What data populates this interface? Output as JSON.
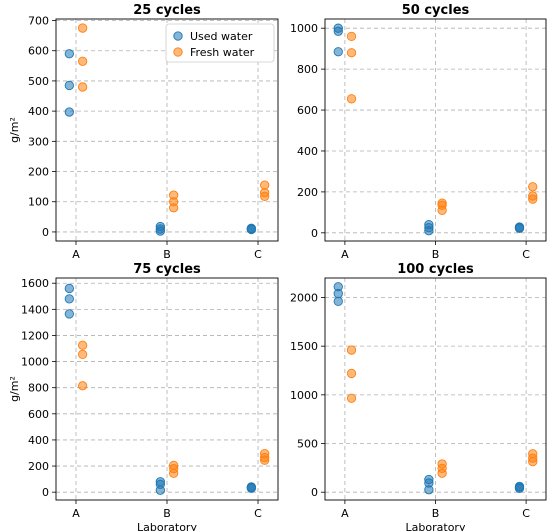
{
  "colors": {
    "used": "#1f77b4",
    "fresh": "#ff7f0e"
  },
  "legend": {
    "placement": "top-right",
    "entries": [
      "Used water",
      "Fresh water"
    ]
  },
  "chart_data": [
    {
      "type": "scatter",
      "title": "25 cycles",
      "xlabel": "",
      "ylabel": "g/m²",
      "categories": [
        "A",
        "B",
        "C"
      ],
      "ylim": [
        -30,
        705
      ],
      "yticks": [
        "0",
        "100",
        "200",
        "300",
        "400",
        "500",
        "600",
        "700"
      ],
      "grid": true,
      "series": [
        {
          "name": "Used water",
          "points": [
            [
              "A",
              590
            ],
            [
              "A",
              485
            ],
            [
              "A",
              397
            ],
            [
              "B",
              18
            ],
            [
              "B",
              10
            ],
            [
              "B",
              3
            ],
            [
              "C",
              12
            ],
            [
              "C",
              10
            ],
            [
              "C",
              8
            ]
          ]
        },
        {
          "name": "Fresh water",
          "points": [
            [
              "A",
              675
            ],
            [
              "A",
              565
            ],
            [
              "A",
              480
            ],
            [
              "B",
              122
            ],
            [
              "B",
              100
            ],
            [
              "B",
              80
            ],
            [
              "C",
              155
            ],
            [
              "C",
              130
            ],
            [
              "C",
              118
            ]
          ]
        }
      ]
    },
    {
      "type": "scatter",
      "title": "50 cycles",
      "xlabel": "",
      "ylabel": "",
      "categories": [
        "A",
        "B",
        "C"
      ],
      "ylim": [
        -40,
        1045
      ],
      "yticks": [
        "0",
        "200",
        "400",
        "600",
        "800",
        "1000"
      ],
      "grid": true,
      "series": [
        {
          "name": "Used water",
          "points": [
            [
              "A",
              1000
            ],
            [
              "A",
              985
            ],
            [
              "A",
              885
            ],
            [
              "B",
              40
            ],
            [
              "B",
              25
            ],
            [
              "B",
              10
            ],
            [
              "C",
              28
            ],
            [
              "C",
              25
            ],
            [
              "C",
              22
            ]
          ]
        },
        {
          "name": "Fresh water",
          "points": [
            [
              "A",
              960
            ],
            [
              "A",
              880
            ],
            [
              "A",
              655
            ],
            [
              "B",
              145
            ],
            [
              "B",
              135
            ],
            [
              "B",
              110
            ],
            [
              "C",
              225
            ],
            [
              "C",
              180
            ],
            [
              "C",
              165
            ]
          ]
        }
      ]
    },
    {
      "type": "scatter",
      "title": "75 cycles",
      "xlabel": "Laboratory",
      "ylabel": "g/m²",
      "categories": [
        "A",
        "B",
        "C"
      ],
      "ylim": [
        -60,
        1640
      ],
      "yticks": [
        "0",
        "200",
        "400",
        "600",
        "800",
        "1000",
        "1200",
        "1400",
        "1600"
      ],
      "grid": true,
      "series": [
        {
          "name": "Used water",
          "points": [
            [
              "A",
              1560
            ],
            [
              "A",
              1480
            ],
            [
              "A",
              1365
            ],
            [
              "B",
              80
            ],
            [
              "B",
              60
            ],
            [
              "B",
              15
            ],
            [
              "C",
              40
            ],
            [
              "C",
              35
            ],
            [
              "C",
              30
            ]
          ]
        },
        {
          "name": "Fresh water",
          "points": [
            [
              "A",
              1125
            ],
            [
              "A",
              1055
            ],
            [
              "A",
              815
            ],
            [
              "B",
              205
            ],
            [
              "B",
              180
            ],
            [
              "B",
              145
            ],
            [
              "C",
              295
            ],
            [
              "C",
              265
            ],
            [
              "C",
              245
            ]
          ]
        }
      ]
    },
    {
      "type": "scatter",
      "title": "100 cycles",
      "xlabel": "Laboratory",
      "ylabel": "",
      "categories": [
        "A",
        "B",
        "C"
      ],
      "ylim": [
        -80,
        2200
      ],
      "yticks": [
        "0",
        "500",
        "1000",
        "1500",
        "2000"
      ],
      "grid": true,
      "series": [
        {
          "name": "Used water",
          "points": [
            [
              "A",
              2110
            ],
            [
              "A",
              2040
            ],
            [
              "A",
              1960
            ],
            [
              "B",
              130
            ],
            [
              "B",
              95
            ],
            [
              "B",
              25
            ],
            [
              "C",
              60
            ],
            [
              "C",
              50
            ],
            [
              "C",
              40
            ]
          ]
        },
        {
          "name": "Fresh water",
          "points": [
            [
              "A",
              1460
            ],
            [
              "A",
              1220
            ],
            [
              "A",
              965
            ],
            [
              "B",
              290
            ],
            [
              "B",
              245
            ],
            [
              "B",
              195
            ],
            [
              "C",
              395
            ],
            [
              "C",
              350
            ],
            [
              "C",
              315
            ]
          ]
        }
      ]
    }
  ]
}
